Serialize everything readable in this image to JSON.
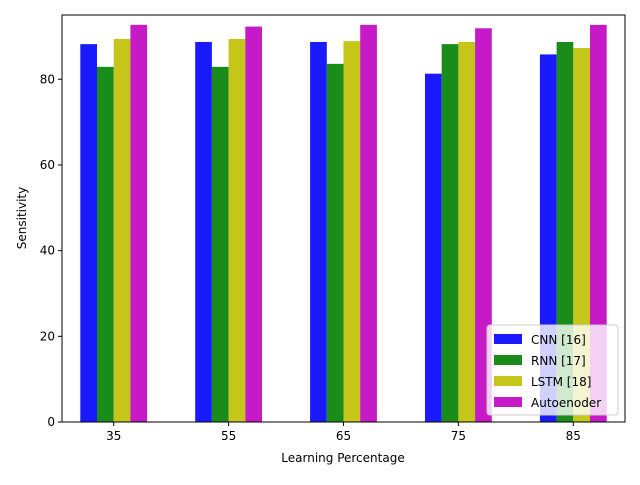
{
  "chart_data": {
    "type": "bar",
    "xlabel": "Learning Percentage",
    "ylabel": "Sensitivity",
    "categories": [
      "35",
      "55",
      "65",
      "75",
      "85"
    ],
    "ylim": [
      0,
      95
    ],
    "yticks": [
      0,
      20,
      40,
      60,
      80
    ],
    "ytick_labels": [
      "0",
      "20",
      "40",
      "60",
      "80"
    ],
    "grid": false,
    "legend_position": "lower right",
    "series": [
      {
        "name": "CNN [16]",
        "color": "#1a1aff",
        "values": [
          88.2,
          88.7,
          88.7,
          81.3,
          85.8
        ]
      },
      {
        "name": "RNN [17]",
        "color": "#1a8c1a",
        "values": [
          82.9,
          82.9,
          83.6,
          88.2,
          88.7
        ]
      },
      {
        "name": "LSTM [18]",
        "color": "#c6c61a",
        "values": [
          89.4,
          89.4,
          88.9,
          88.7,
          87.3
        ]
      },
      {
        "name": "Autoenoder",
        "color": "#c51ac5",
        "values": [
          92.7,
          92.3,
          92.7,
          91.9,
          92.7
        ]
      }
    ]
  }
}
